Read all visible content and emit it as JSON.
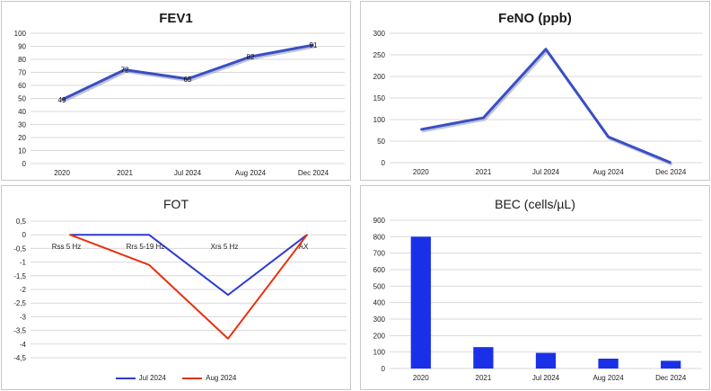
{
  "chart_data": [
    {
      "type": "line",
      "title": "FEV1",
      "categories": [
        "2020",
        "2021",
        "Jul 2024",
        "Aug 2024",
        "Dec 2024"
      ],
      "series": [
        {
          "values": [
            49,
            72,
            65,
            82,
            91
          ],
          "data_labels": [
            "49",
            "72",
            "65",
            "82",
            "91"
          ]
        }
      ],
      "y_ticks": [
        "100",
        "90",
        "80",
        "70",
        "60",
        "50",
        "40",
        "30",
        "20",
        "10",
        "0"
      ],
      "ylim": [
        0,
        100
      ],
      "grid": true,
      "color": "#3a4fc4"
    },
    {
      "type": "line",
      "title": "FeNO (ppb)",
      "categories": [
        "2020",
        "2021",
        "Jul 2024",
        "Aug 2024",
        "Dec 2024"
      ],
      "series": [
        {
          "values": [
            77,
            104,
            263,
            60,
            0
          ]
        }
      ],
      "y_ticks": [
        "300",
        "250",
        "200",
        "150",
        "100",
        "50",
        "0"
      ],
      "ylim": [
        0,
        300
      ],
      "grid": true,
      "color": "#3a4fc4"
    },
    {
      "type": "line",
      "title": "FOT",
      "categories": [
        "Rss 5 Hz",
        "Rrs 5-19 Hz",
        "Xrs 5 Hz",
        "AX"
      ],
      "series": [
        {
          "name": "Jul 2024",
          "values": [
            0,
            0,
            -2.2,
            0
          ],
          "color": "#2e3ccf"
        },
        {
          "name": "Aug 2024",
          "values": [
            0,
            -1.1,
            -3.8,
            0
          ],
          "color": "#e8300e"
        }
      ],
      "y_ticks": [
        "0,5",
        "0",
        "-0,5",
        "-1",
        "-1,5",
        "-2",
        "-2,5",
        "-3",
        "-3,5",
        "-4",
        "-4,5"
      ],
      "ylim": [
        -4.5,
        0.5
      ],
      "grid": true,
      "legend": "bottom"
    },
    {
      "type": "bar",
      "title": "BEC (cells/µL)",
      "categories": [
        "2020",
        "2021",
        "Jul 2024",
        "Aug 2024",
        "Dec 2024"
      ],
      "values": [
        800,
        130,
        95,
        60,
        47
      ],
      "y_ticks": [
        "900",
        "800",
        "700",
        "600",
        "500",
        "400",
        "300",
        "200",
        "100",
        "0"
      ],
      "ylim": [
        0,
        900
      ],
      "grid": true,
      "color": "#1a30e8"
    }
  ]
}
